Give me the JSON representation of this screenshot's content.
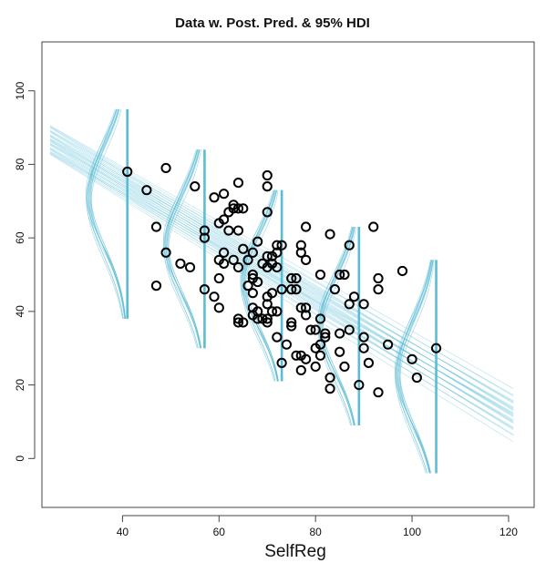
{
  "chart_data": {
    "type": "scatter",
    "title": "Data w. Post. Pred. & 95% HDI",
    "xlabel": "SelfReg",
    "ylabel": "",
    "xlim": [
      23.3,
      125.3
    ],
    "ylim": [
      -13.3,
      113.3
    ],
    "x_ticks": [
      40,
      60,
      80,
      100,
      120
    ],
    "y_ticks": [
      0,
      20,
      40,
      60,
      80,
      100
    ],
    "grid": false,
    "legend": "none",
    "colors": {
      "posterior": "#5bbcd6",
      "points": "#000000",
      "axis": "#444444"
    },
    "posterior_lines": {
      "count": 30,
      "x_range": [
        25,
        121
      ],
      "intercept_range": [
        102.0,
        110.0
      ],
      "slope_range": [
        -0.74,
        -0.82
      ]
    },
    "hdi_bars": [
      {
        "x": 41,
        "low": 38,
        "high": 95,
        "mean": 71
      },
      {
        "x": 57,
        "low": 30,
        "high": 84,
        "mean": 58
      },
      {
        "x": 73,
        "low": 21,
        "high": 73,
        "mean": 48
      },
      {
        "x": 89,
        "low": 9,
        "high": 63,
        "mean": 36
      },
      {
        "x": 105,
        "low": -4,
        "high": 54,
        "mean": 23
      }
    ],
    "points": [
      [
        41,
        78
      ],
      [
        45,
        73
      ],
      [
        47,
        63
      ],
      [
        47,
        47
      ],
      [
        49,
        79
      ],
      [
        49,
        56
      ],
      [
        52,
        53
      ],
      [
        54,
        52
      ],
      [
        55,
        74
      ],
      [
        57,
        62
      ],
      [
        57,
        60
      ],
      [
        57,
        46
      ],
      [
        59,
        71
      ],
      [
        59,
        44
      ],
      [
        60,
        64
      ],
      [
        60,
        54
      ],
      [
        60,
        49
      ],
      [
        60,
        41
      ],
      [
        61,
        72
      ],
      [
        61,
        65
      ],
      [
        61,
        56
      ],
      [
        61,
        53
      ],
      [
        62,
        67
      ],
      [
        62,
        62
      ],
      [
        63,
        69
      ],
      [
        63,
        68
      ],
      [
        63,
        54
      ],
      [
        64,
        75
      ],
      [
        64,
        68
      ],
      [
        64,
        62
      ],
      [
        64,
        52
      ],
      [
        64,
        38
      ],
      [
        64,
        37
      ],
      [
        65,
        68
      ],
      [
        65,
        57
      ],
      [
        65,
        37
      ],
      [
        66,
        54
      ],
      [
        66,
        47
      ],
      [
        67,
        56
      ],
      [
        67,
        50
      ],
      [
        67,
        49
      ],
      [
        67,
        45
      ],
      [
        67,
        41
      ],
      [
        67,
        39
      ],
      [
        68,
        59
      ],
      [
        68,
        48
      ],
      [
        68,
        40
      ],
      [
        68,
        38
      ],
      [
        69,
        53
      ],
      [
        69,
        38
      ],
      [
        70,
        77
      ],
      [
        70,
        74
      ],
      [
        70,
        67
      ],
      [
        70,
        55
      ],
      [
        70,
        52
      ],
      [
        70,
        44
      ],
      [
        70,
        42
      ],
      [
        70,
        38
      ],
      [
        70,
        37
      ],
      [
        71,
        55
      ],
      [
        71,
        53
      ],
      [
        71,
        45
      ],
      [
        71,
        40
      ],
      [
        72,
        58
      ],
      [
        72,
        56
      ],
      [
        72,
        52
      ],
      [
        72,
        40
      ],
      [
        72,
        33
      ],
      [
        73,
        58
      ],
      [
        73,
        46
      ],
      [
        73,
        26
      ],
      [
        74,
        31
      ],
      [
        75,
        49
      ],
      [
        75,
        46
      ],
      [
        75,
        37
      ],
      [
        75,
        36
      ],
      [
        76,
        49
      ],
      [
        76,
        46
      ],
      [
        76,
        28
      ],
      [
        77,
        58
      ],
      [
        77,
        56
      ],
      [
        77,
        41
      ],
      [
        77,
        28
      ],
      [
        77,
        24
      ],
      [
        78,
        63
      ],
      [
        78,
        54
      ],
      [
        78,
        41
      ],
      [
        78,
        39
      ],
      [
        78,
        27
      ],
      [
        79,
        35
      ],
      [
        80,
        35
      ],
      [
        80,
        30
      ],
      [
        80,
        25
      ],
      [
        81,
        50
      ],
      [
        81,
        38
      ],
      [
        81,
        31
      ],
      [
        81,
        28
      ],
      [
        82,
        34
      ],
      [
        82,
        33
      ],
      [
        83,
        61
      ],
      [
        83,
        22
      ],
      [
        83,
        19
      ],
      [
        84,
        46
      ],
      [
        85,
        50
      ],
      [
        85,
        34
      ],
      [
        85,
        29
      ],
      [
        86,
        50
      ],
      [
        86,
        25
      ],
      [
        87,
        58
      ],
      [
        87,
        42
      ],
      [
        87,
        35
      ],
      [
        88,
        44
      ],
      [
        89,
        20
      ],
      [
        90,
        42
      ],
      [
        90,
        33
      ],
      [
        90,
        30
      ],
      [
        91,
        26
      ],
      [
        92,
        63
      ],
      [
        93,
        49
      ],
      [
        93,
        46
      ],
      [
        93,
        18
      ],
      [
        95,
        31
      ],
      [
        98,
        51
      ],
      [
        100,
        27
      ],
      [
        101,
        22
      ],
      [
        105,
        30
      ]
    ]
  }
}
